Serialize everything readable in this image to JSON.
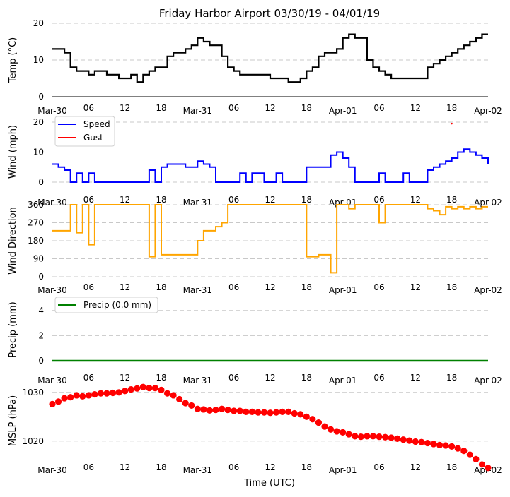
{
  "figure": {
    "title": "Friday Harbor Airport 03/30/19 - 04/01/19",
    "xlabel": "Time (UTC)",
    "x_tick_labels": [
      "Mar-30",
      "06",
      "12",
      "18",
      "Mar-31",
      "06",
      "12",
      "18",
      "Apr-01",
      "06",
      "12",
      "18",
      "Apr-02"
    ],
    "x_range_hours": [
      0,
      72
    ]
  },
  "chart_data": [
    {
      "type": "line",
      "id": "temp",
      "title": "Friday Harbor Airport 03/30/19 - 04/01/19",
      "ylabel": "Temp ($^\\circ$C)",
      "ylabel_display": "Temp (°C)",
      "xlabel": "",
      "ylim": [
        0,
        20
      ],
      "y_ticks": [
        0,
        10,
        20
      ],
      "grid": true,
      "color": "#000000",
      "x_hours": [
        0,
        1,
        2,
        3,
        4,
        5,
        6,
        7,
        8,
        9,
        10,
        11,
        12,
        13,
        14,
        15,
        16,
        17,
        18,
        19,
        20,
        21,
        22,
        23,
        24,
        25,
        26,
        27,
        28,
        29,
        30,
        31,
        32,
        33,
        34,
        35,
        36,
        37,
        38,
        39,
        40,
        41,
        42,
        43,
        44,
        45,
        46,
        47,
        48,
        49,
        50,
        51,
        52,
        53,
        54,
        55,
        56,
        57,
        58,
        59,
        60,
        61,
        62,
        63,
        64,
        65,
        66,
        67,
        68,
        69,
        70,
        71,
        72
      ],
      "values": [
        13,
        13,
        12,
        8,
        7,
        7,
        6,
        7,
        7,
        6,
        6,
        5,
        5,
        6,
        4,
        6,
        7,
        8,
        8,
        11,
        12,
        12,
        13,
        14,
        16,
        15,
        14,
        14,
        11,
        8,
        7,
        6,
        6,
        6,
        6,
        6,
        5,
        5,
        5,
        4,
        4,
        5,
        7,
        8,
        11,
        12,
        12,
        13,
        16,
        17,
        16,
        16,
        10,
        8,
        7,
        6,
        5,
        5,
        5,
        5,
        5,
        5,
        8,
        9,
        10,
        11,
        12,
        13,
        14,
        15,
        16,
        17,
        17
      ],
      "series": [
        {
          "name": "Temp",
          "color": "#000000"
        }
      ]
    },
    {
      "type": "line",
      "id": "wind",
      "ylabel": "Wind (mph)",
      "ylim": [
        0,
        20
      ],
      "y_ticks": [
        0,
        10,
        20
      ],
      "grid": true,
      "legend": {
        "placement": "top-left",
        "entries": [
          "Speed",
          "Gust"
        ]
      },
      "x_hours": [
        0,
        1,
        2,
        3,
        4,
        5,
        6,
        7,
        8,
        9,
        10,
        11,
        12,
        13,
        14,
        15,
        16,
        17,
        18,
        19,
        20,
        21,
        22,
        23,
        24,
        25,
        26,
        27,
        28,
        29,
        30,
        31,
        32,
        33,
        34,
        35,
        36,
        37,
        38,
        39,
        40,
        41,
        42,
        43,
        44,
        45,
        46,
        47,
        48,
        49,
        50,
        51,
        52,
        53,
        54,
        55,
        56,
        57,
        58,
        59,
        60,
        61,
        62,
        63,
        64,
        65,
        66,
        67,
        68,
        69,
        70,
        71,
        72
      ],
      "series": [
        {
          "name": "Speed",
          "color": "#0000ff",
          "values": [
            6,
            5,
            4,
            0,
            3,
            0,
            3,
            0,
            0,
            0,
            0,
            0,
            0,
            0,
            0,
            0,
            4,
            0,
            5,
            6,
            6,
            6,
            5,
            5,
            7,
            6,
            5,
            0,
            0,
            0,
            0,
            3,
            0,
            3,
            3,
            0,
            0,
            3,
            0,
            0,
            0,
            0,
            5,
            5,
            5,
            5,
            9,
            10,
            8,
            5,
            0,
            0,
            0,
            0,
            3,
            0,
            0,
            0,
            3,
            0,
            0,
            0,
            4,
            5,
            6,
            7,
            8,
            10,
            11,
            10,
            9,
            8,
            6
          ]
        },
        {
          "name": "Gust",
          "color": "#ff0000",
          "points": [
            {
              "x_hour": 66,
              "value": 19.5
            }
          ]
        }
      ]
    },
    {
      "type": "line",
      "id": "wind_direction",
      "ylabel": "Wind Direction",
      "ylim": [
        0,
        360
      ],
      "y_ticks": [
        0,
        90,
        180,
        270,
        360
      ],
      "grid": true,
      "color": "#ffa500",
      "x_hours": [
        0,
        1,
        2,
        3,
        4,
        5,
        6,
        7,
        8,
        9,
        10,
        11,
        12,
        13,
        14,
        15,
        16,
        17,
        18,
        19,
        20,
        21,
        22,
        23,
        24,
        25,
        26,
        27,
        28,
        29,
        30,
        31,
        32,
        33,
        34,
        35,
        36,
        37,
        38,
        39,
        40,
        41,
        42,
        43,
        44,
        45,
        46,
        47,
        48,
        49,
        50,
        51,
        52,
        53,
        54,
        55,
        56,
        57,
        58,
        59,
        60,
        61,
        62,
        63,
        64,
        65,
        66,
        67,
        68,
        69,
        70,
        71,
        72
      ],
      "values": [
        230,
        230,
        230,
        360,
        220,
        360,
        160,
        360,
        360,
        360,
        360,
        360,
        360,
        360,
        360,
        360,
        100,
        360,
        110,
        110,
        110,
        110,
        110,
        110,
        180,
        230,
        230,
        250,
        270,
        360,
        360,
        360,
        360,
        360,
        360,
        360,
        360,
        360,
        360,
        360,
        360,
        360,
        100,
        100,
        110,
        110,
        20,
        360,
        360,
        340,
        360,
        360,
        360,
        360,
        270,
        360,
        360,
        360,
        360,
        360,
        360,
        360,
        340,
        330,
        310,
        350,
        340,
        350,
        340,
        350,
        340,
        350,
        350
      ],
      "series": [
        {
          "name": "Wind Direction",
          "color": "#ffa500"
        }
      ]
    },
    {
      "type": "line",
      "id": "precip",
      "ylabel": "Precip (mm)",
      "ylim": [
        0,
        5
      ],
      "y_ticks": [
        0,
        2,
        4
      ],
      "grid": true,
      "legend": {
        "placement": "top-left",
        "entries": [
          "Precip (0.0 mm)"
        ]
      },
      "x_range_hours": [
        0,
        72
      ],
      "values_constant": 0.0,
      "series": [
        {
          "name": "Precip (0.0 mm)",
          "color": "#008000"
        }
      ]
    },
    {
      "type": "scatter",
      "id": "mslp",
      "ylabel": "MSLP (hPa)",
      "xlabel": "Time (UTC)",
      "ylim": [
        1012,
        1032
      ],
      "y_ticks": [
        1020,
        1030
      ],
      "grid": true,
      "color": "#ff0000",
      "x_hours": [
        0,
        1,
        2,
        3,
        4,
        5,
        6,
        7,
        8,
        9,
        10,
        11,
        12,
        13,
        14,
        15,
        16,
        17,
        18,
        19,
        20,
        21,
        22,
        23,
        24,
        25,
        26,
        27,
        28,
        29,
        30,
        31,
        32,
        33,
        34,
        35,
        36,
        37,
        38,
        39,
        40,
        41,
        42,
        43,
        44,
        45,
        46,
        47,
        48,
        49,
        50,
        51,
        52,
        53,
        54,
        55,
        56,
        57,
        58,
        59,
        60,
        61,
        62,
        63,
        64,
        65,
        66,
        67,
        68,
        69,
        70,
        71,
        72
      ],
      "values": [
        1027.6,
        1028.1,
        1028.8,
        1029.0,
        1029.4,
        1029.2,
        1029.4,
        1029.6,
        1029.8,
        1029.8,
        1029.9,
        1030.0,
        1030.3,
        1030.6,
        1030.8,
        1031.1,
        1030.9,
        1030.9,
        1030.5,
        1029.8,
        1029.4,
        1028.6,
        1027.8,
        1027.3,
        1026.6,
        1026.5,
        1026.3,
        1026.4,
        1026.6,
        1026.4,
        1026.2,
        1026.2,
        1026.0,
        1026.0,
        1025.9,
        1025.9,
        1025.8,
        1025.9,
        1026.0,
        1026.0,
        1025.7,
        1025.5,
        1025.0,
        1024.5,
        1023.8,
        1023.0,
        1022.4,
        1022.0,
        1021.8,
        1021.4,
        1021.0,
        1020.9,
        1021.0,
        1021.0,
        1020.9,
        1020.8,
        1020.7,
        1020.5,
        1020.3,
        1020.1,
        1019.9,
        1019.8,
        1019.6,
        1019.4,
        1019.2,
        1019.1,
        1018.9,
        1018.5,
        1018.0,
        1017.2,
        1016.3,
        1015.2,
        1014.5
      ],
      "series": [
        {
          "name": "MSLP",
          "color": "#ff0000"
        }
      ]
    }
  ]
}
